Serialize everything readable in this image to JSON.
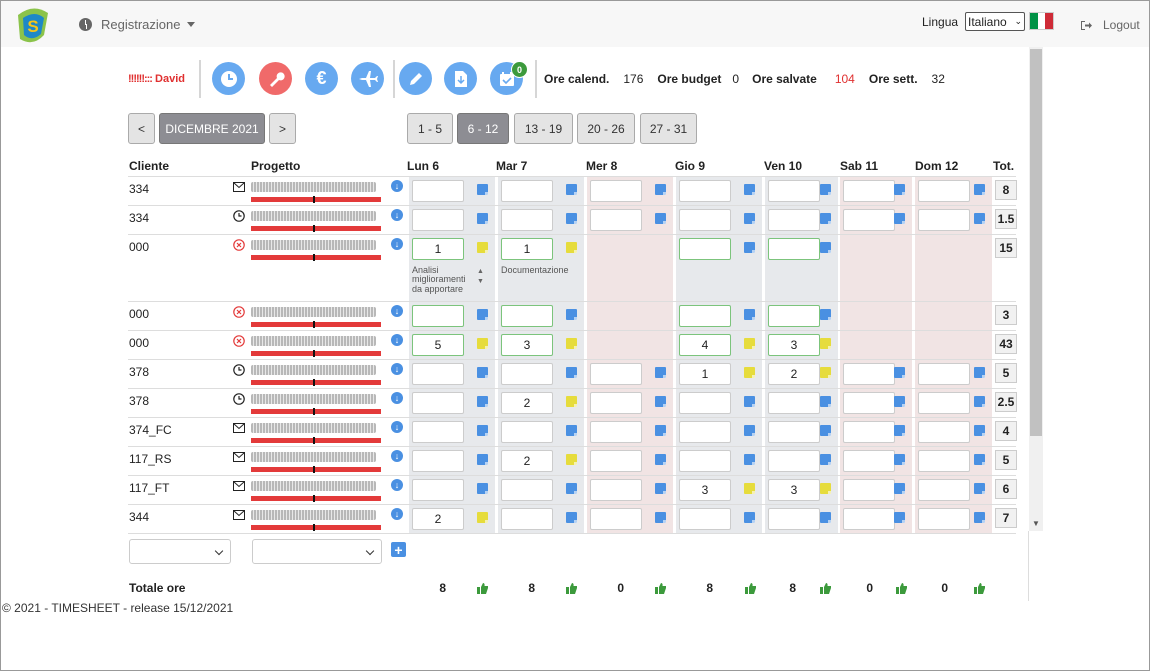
{
  "header": {
    "menu_label": "Registrazione",
    "lingua_label": "Lingua",
    "language_value": "Italiano",
    "logout_label": "Logout"
  },
  "toolbar": {
    "user_name": "David",
    "badge_count": "0",
    "stats": [
      {
        "label": "Ore calend.",
        "value": "176"
      },
      {
        "label": "Ore budget",
        "value": "0"
      },
      {
        "label": "Ore salvate",
        "value": "104"
      },
      {
        "label": "Ore sett.",
        "value": "32"
      }
    ]
  },
  "nav": {
    "prev": "<",
    "month": "DICEMBRE 2021",
    "next": ">",
    "weeks": [
      "1 - 5",
      "6 - 12",
      "13 - 19",
      "20 - 26",
      "27 - 31"
    ],
    "active_week": "6 - 12"
  },
  "table": {
    "headers": {
      "cliente": "Cliente",
      "progetto": "Progetto",
      "tot": "Tot."
    },
    "days": [
      "Lun 6",
      "Mar 7",
      "Mer 8",
      "Gio 9",
      "Ven 10",
      "Sab 11",
      "Dom 12"
    ],
    "rows": [
      {
        "cliente": "334",
        "icon": "mail-icon",
        "cells": [
          "",
          "",
          "",
          "",
          "",
          "",
          ""
        ],
        "tot": "8"
      },
      {
        "cliente": "334",
        "icon": "clock-icon",
        "cells": [
          "",
          "",
          "",
          "",
          "",
          "",
          ""
        ],
        "tot": "1.5"
      },
      {
        "cliente": "000",
        "icon": "cancel-icon",
        "cells": [
          "1",
          "1",
          "",
          "",
          "",
          "",
          ""
        ],
        "tot": "15",
        "notes": [
          "Analisi miglioramenti da apportare",
          "Documentazione"
        ]
      },
      {
        "cliente": "000",
        "icon": "cancel-icon",
        "cells": [
          "",
          "",
          "",
          "",
          "",
          "",
          ""
        ],
        "tot": "3"
      },
      {
        "cliente": "000",
        "icon": "cancel-icon",
        "cells": [
          "5",
          "3",
          "",
          "4",
          "3",
          "",
          ""
        ],
        "tot": "43"
      },
      {
        "cliente": "378",
        "icon": "clock-icon",
        "cells": [
          "",
          "",
          "",
          "1",
          "2",
          "",
          ""
        ],
        "tot": "5"
      },
      {
        "cliente": "378",
        "icon": "clock-icon",
        "cells": [
          "",
          "2",
          "",
          "",
          "",
          "",
          ""
        ],
        "tot": "2.5"
      },
      {
        "cliente": "374_FC",
        "icon": "mail-icon",
        "cells": [
          "",
          "",
          "",
          "",
          "",
          "",
          ""
        ],
        "tot": "4"
      },
      {
        "cliente": "117_RS",
        "icon": "mail-icon",
        "cells": [
          "",
          "2",
          "",
          "",
          "",
          "",
          ""
        ],
        "tot": "5"
      },
      {
        "cliente": "117_FT",
        "icon": "mail-icon",
        "cells": [
          "",
          "",
          "",
          "3",
          "3",
          "",
          ""
        ],
        "tot": "6"
      },
      {
        "cliente": "344",
        "icon": "mail-icon",
        "cells": [
          "2",
          "",
          "",
          "",
          "",
          "",
          ""
        ],
        "tot": "7"
      }
    ],
    "totale_label": "Totale ore",
    "totals": [
      "8",
      "8",
      "0",
      "8",
      "8",
      "0",
      "0"
    ]
  },
  "footer": {
    "text": "© 2021 - TIMESHEET - release 15/12/2021"
  },
  "colors": {
    "accent": "#67a9f0",
    "danger": "#e33a3a",
    "success": "#3c9a3c"
  }
}
